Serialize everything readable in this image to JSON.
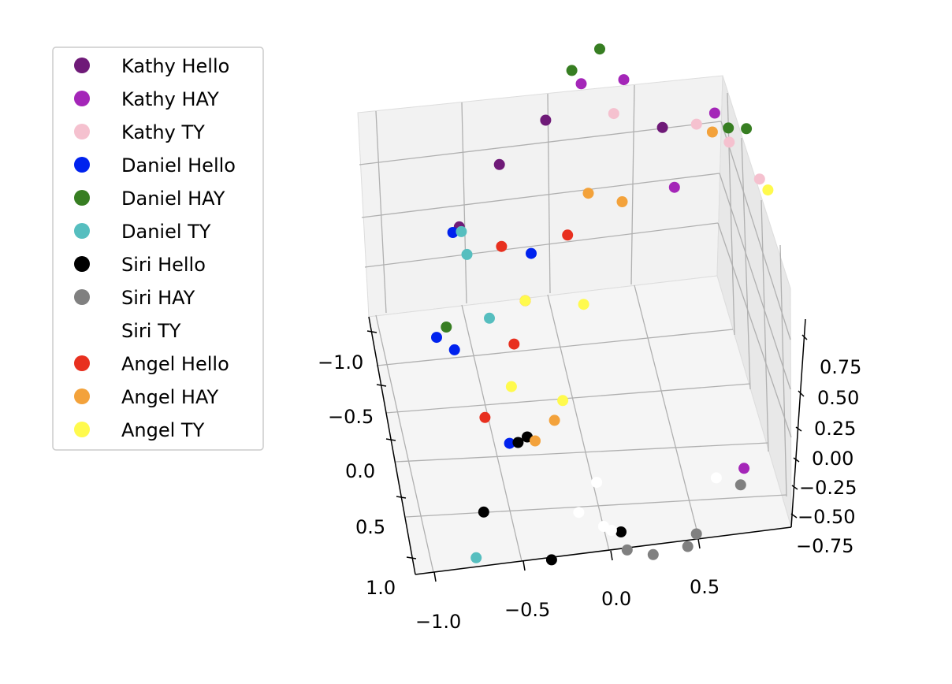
{
  "chart_data": {
    "type": "scatter",
    "projection": "3d",
    "title": "",
    "xlabel": "",
    "ylabel": "",
    "zlabel": "",
    "grid": true,
    "legend_position": "upper-left",
    "x_ticks": [
      "−1.0",
      "−0.5",
      "0.0",
      "0.5"
    ],
    "y_ticks": [
      "−1.0",
      "−0.5",
      "0.0",
      "0.5",
      "1.0"
    ],
    "z_ticks": [
      "0.75",
      "0.50",
      "0.25",
      "0.00",
      "−0.25",
      "−0.50",
      "−0.75"
    ],
    "series": [
      {
        "name": "Kathy Hello",
        "color": "#6f1a78",
        "points": [
          [
            -0.75,
            -0.5,
            0.55
          ],
          [
            -0.95,
            0.0,
            0.5
          ],
          [
            0.2,
            -0.6,
            0.6
          ],
          [
            -0.5,
            -0.8,
            0.6
          ]
        ]
      },
      {
        "name": "Kathy HAY",
        "color": "#a426b8",
        "points": [
          [
            -0.3,
            -0.9,
            0.7
          ],
          [
            0.3,
            -0.2,
            0.5
          ],
          [
            0.5,
            -0.7,
            0.6
          ],
          [
            0.75,
            0.1,
            -0.6
          ],
          [
            -0.05,
            -0.9,
            0.7
          ]
        ]
      },
      {
        "name": "Kathy TY",
        "color": "#f5c1cf",
        "points": [
          [
            0.4,
            -0.6,
            0.6
          ],
          [
            0.8,
            -0.2,
            0.5
          ],
          [
            0.6,
            -0.5,
            0.55
          ],
          [
            -0.1,
            -0.8,
            0.6
          ]
        ]
      },
      {
        "name": "Daniel Hello",
        "color": "#0022ee",
        "points": [
          [
            -1.0,
            -0.2,
            0.4
          ],
          [
            -1.05,
            0.4,
            0.2
          ],
          [
            -0.95,
            0.3,
            0.1
          ],
          [
            -0.55,
            -0.4,
            0.2
          ],
          [
            -0.6,
            0.6,
            -0.2
          ]
        ]
      },
      {
        "name": "Daniel HAY",
        "color": "#377e22",
        "points": [
          [
            -0.35,
            -0.8,
            0.8
          ],
          [
            -0.2,
            -1.0,
            0.8
          ],
          [
            0.6,
            -0.4,
            0.65
          ],
          [
            0.7,
            -0.5,
            0.6
          ],
          [
            -1.0,
            0.3,
            0.2
          ]
        ]
      },
      {
        "name": "Daniel TY",
        "color": "#56bebf",
        "points": [
          [
            -0.95,
            -0.2,
            0.4
          ],
          [
            -0.9,
            0.05,
            0.4
          ],
          [
            -0.75,
            0.25,
            0.2
          ],
          [
            -0.8,
            0.4,
            -0.75
          ]
        ]
      },
      {
        "name": "Siri Hello",
        "color": "#000000",
        "points": [
          [
            -0.55,
            0.6,
            -0.2
          ],
          [
            -0.5,
            0.55,
            -0.2
          ],
          [
            -0.75,
            0.55,
            -0.5
          ],
          [
            -0.35,
            0.5,
            -0.75
          ],
          [
            0.05,
            0.4,
            -0.7
          ]
        ]
      },
      {
        "name": "Siri HAY",
        "color": "#808080",
        "points": [
          [
            0.1,
            0.6,
            -0.7
          ],
          [
            0.25,
            0.55,
            -0.75
          ],
          [
            0.45,
            0.5,
            -0.75
          ],
          [
            0.5,
            0.5,
            -0.7
          ],
          [
            0.75,
            0.4,
            -0.55
          ]
        ]
      },
      {
        "name": "Siri TY",
        "color": "#ffffff",
        "points": [
          [
            -0.2,
            0.4,
            -0.6
          ],
          [
            -0.05,
            0.45,
            -0.65
          ],
          [
            0.0,
            0.5,
            -0.65
          ],
          [
            0.6,
            0.3,
            -0.55
          ],
          [
            -0.1,
            0.35,
            -0.5
          ]
        ]
      },
      {
        "name": "Angel Hello",
        "color": "#e8301f",
        "points": [
          [
            -0.55,
            0.1,
            0.2
          ],
          [
            -0.6,
            0.3,
            0.1
          ],
          [
            -0.75,
            0.55,
            -0.1
          ],
          [
            -0.7,
            0.0,
            0.4
          ],
          [
            -0.3,
            0.2,
            0.5
          ]
        ]
      },
      {
        "name": "Angel HAY",
        "color": "#f3a23b",
        "points": [
          [
            -0.2,
            -0.1,
            0.55
          ],
          [
            0.0,
            -0.1,
            0.5
          ],
          [
            0.5,
            -0.5,
            0.6
          ],
          [
            -0.45,
            0.6,
            -0.2
          ],
          [
            -0.35,
            0.4,
            -0.2
          ]
        ]
      },
      {
        "name": "Angel TY",
        "color": "#fffa4d",
        "points": [
          [
            -0.55,
            0.1,
            0.2
          ],
          [
            -0.6,
            0.5,
            0.0
          ],
          [
            -0.2,
            0.2,
            0.2
          ],
          [
            -0.3,
            0.45,
            -0.1
          ],
          [
            0.85,
            -0.2,
            0.45
          ]
        ]
      }
    ]
  }
}
